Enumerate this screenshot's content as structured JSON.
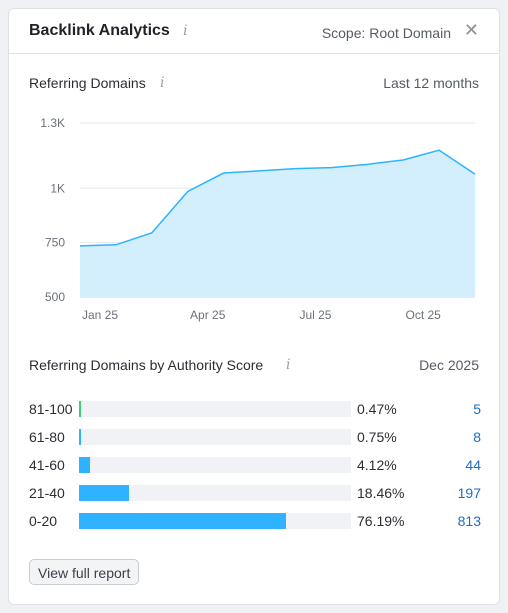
{
  "header": {
    "title": "Backlink Analytics",
    "info_icon": "info-icon",
    "scope": "Scope: Root Domain",
    "close_icon": "close-icon"
  },
  "referring_domains": {
    "title": "Referring Domains",
    "period": "Last 12 months"
  },
  "chart_data": {
    "type": "area",
    "title": "Referring Domains",
    "x": [
      "2025-01",
      "2025-02",
      "2025-03",
      "2025-04",
      "2025-05",
      "2025-06",
      "2025-07",
      "2025-08",
      "2025-09",
      "2025-10",
      "2025-11",
      "2025-12"
    ],
    "series": [
      {
        "values": [
          735,
          740,
          795,
          985,
          1070,
          1080,
          1090,
          1095,
          1110,
          1130,
          1175,
          1065
        ],
        "color": "#2fb2ff",
        "fill": "#d3eefc"
      }
    ],
    "ylim": [
      500,
      1300
    ],
    "yticks": [
      {
        "value": 1300,
        "label": "1.3K"
      },
      {
        "value": 1000,
        "label": "1K"
      },
      {
        "value": 750,
        "label": "750"
      },
      {
        "value": 500,
        "label": "500"
      }
    ],
    "xticks": [
      {
        "index": 0,
        "label": "Jan 25"
      },
      {
        "index": 3,
        "label": "Apr 25"
      },
      {
        "index": 6,
        "label": "Jul 25"
      },
      {
        "index": 9,
        "label": "Oct 25"
      }
    ],
    "grid": true
  },
  "authority": {
    "title": "Referring Domains by Authority Score",
    "date": "Dec 2025",
    "rows": [
      {
        "label": "81-100",
        "percent": 0.47,
        "pct_text": "0.47%",
        "count": "5",
        "color": "#3ccf7a"
      },
      {
        "label": "61-80",
        "percent": 0.75,
        "pct_text": "0.75%",
        "count": "8",
        "color": "#2fb2ff"
      },
      {
        "label": "41-60",
        "percent": 4.12,
        "pct_text": "4.12%",
        "count": "44",
        "color": "#2fb2ff"
      },
      {
        "label": "21-40",
        "percent": 18.46,
        "pct_text": "18.46%",
        "count": "197",
        "color": "#2fb2ff"
      },
      {
        "label": "0-20",
        "percent": 76.19,
        "pct_text": "76.19%",
        "count": "813",
        "color": "#2fb2ff"
      }
    ]
  },
  "footer": {
    "button_label": "View full report"
  }
}
